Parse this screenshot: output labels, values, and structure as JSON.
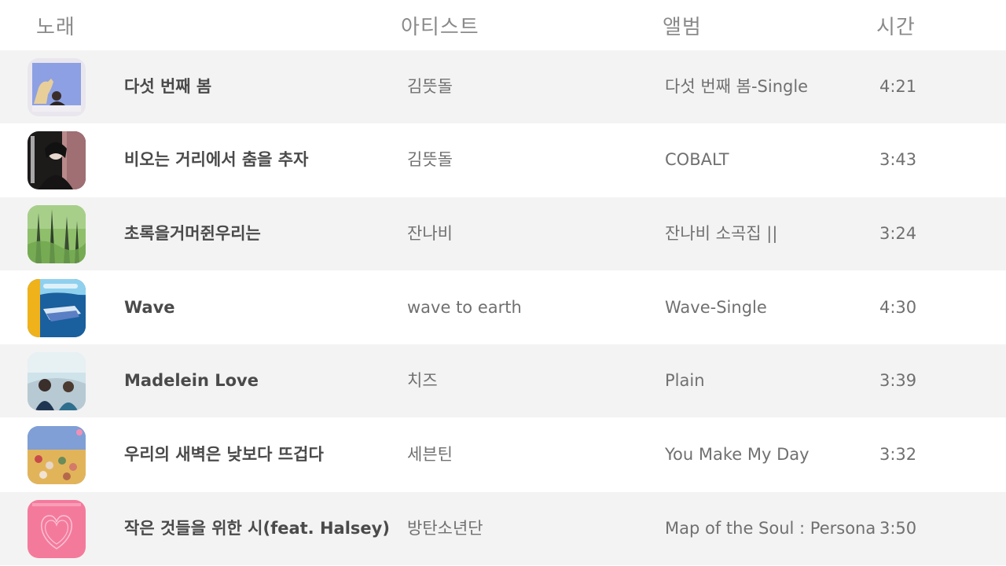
{
  "header": {
    "song": "노래",
    "artist": "아티스트",
    "album": "앨범",
    "time": "시간"
  },
  "rows": [
    {
      "title": "다섯 번째  봄",
      "artist": "김뜻돌",
      "album": "다섯 번째 봄-Single",
      "time": "4:21",
      "art": "album-art-spring-icon"
    },
    {
      "title": "비오는 거리에서 춤을 추자",
      "artist": "김뜻돌",
      "album": "COBALT",
      "time": "3:43",
      "art": "album-art-cobalt-icon"
    },
    {
      "title": "초록을거머쥔우리는",
      "artist": "잔나비",
      "album": "잔나비 소곡집 ||",
      "time": "3:24",
      "art": "album-art-forest-icon"
    },
    {
      "title": "Wave",
      "artist": "wave to earth",
      "album": "Wave-Single",
      "time": "4:30",
      "art": "album-art-wave-icon"
    },
    {
      "title": "Madelein Love",
      "artist": "치즈",
      "album": "Plain",
      "time": "3:39",
      "art": "album-art-plain-icon"
    },
    {
      "title": "우리의 새벽은 낮보다 뜨겁다",
      "artist": "세븐틴",
      "album": "You Make My Day",
      "time": "3:32",
      "art": "album-art-youmakemyday-icon"
    },
    {
      "title": "작은 것들을 위한 시(feat. Halsey)",
      "artist": "방탄소년단",
      "album": "Map of the Soul : Persona",
      "time": "3:50",
      "art": "album-art-persona-icon"
    }
  ]
}
